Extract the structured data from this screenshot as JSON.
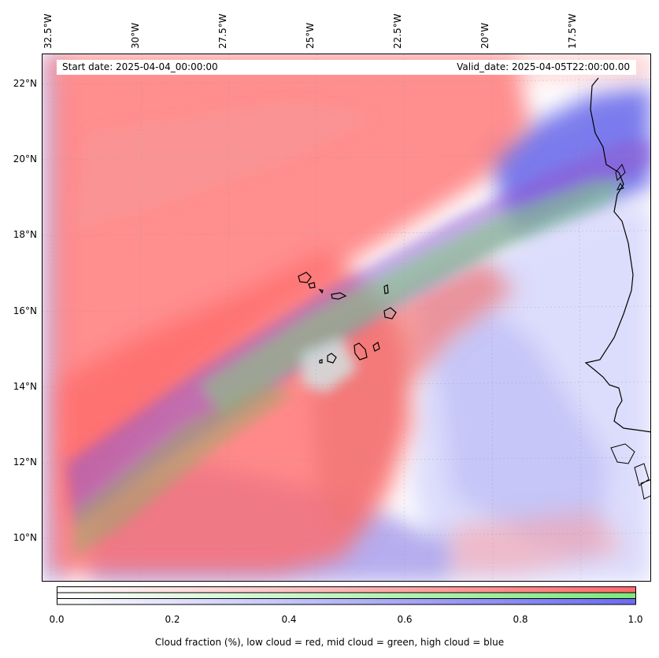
{
  "header": {
    "start_date": "Start date: 2025-04-04_00:00:00",
    "valid_date": "Valid_date: 2025-04-05T22:00:00.00"
  },
  "map": {
    "longitude_labels": [
      "32.5°W",
      "30°W",
      "27.5°W",
      "25°W",
      "22.5°W",
      "20°W",
      "17.5°W"
    ],
    "latitude_labels": [
      "22°N",
      "20°N",
      "18°N",
      "16°N",
      "14°N",
      "12°N",
      "10°N"
    ],
    "layer_colors": {
      "low_cloud": "#ff6b6b",
      "mid_cloud": "#7de87d",
      "high_cloud": "#6b6bf0",
      "coastline": "#000000"
    }
  },
  "colorbar": {
    "ticks": [
      "0.0",
      "0.2",
      "0.4",
      "0.6",
      "0.8",
      "1.0"
    ],
    "range": [
      0.0,
      1.0
    ],
    "caption": "Cloud fraction (%), low cloud = red, mid cloud = green, high cloud = blue",
    "bands": [
      {
        "color_end": "#ff6b6b"
      },
      {
        "color_end": "#7de87d"
      },
      {
        "color_end": "#6b6bf0"
      }
    ]
  }
}
